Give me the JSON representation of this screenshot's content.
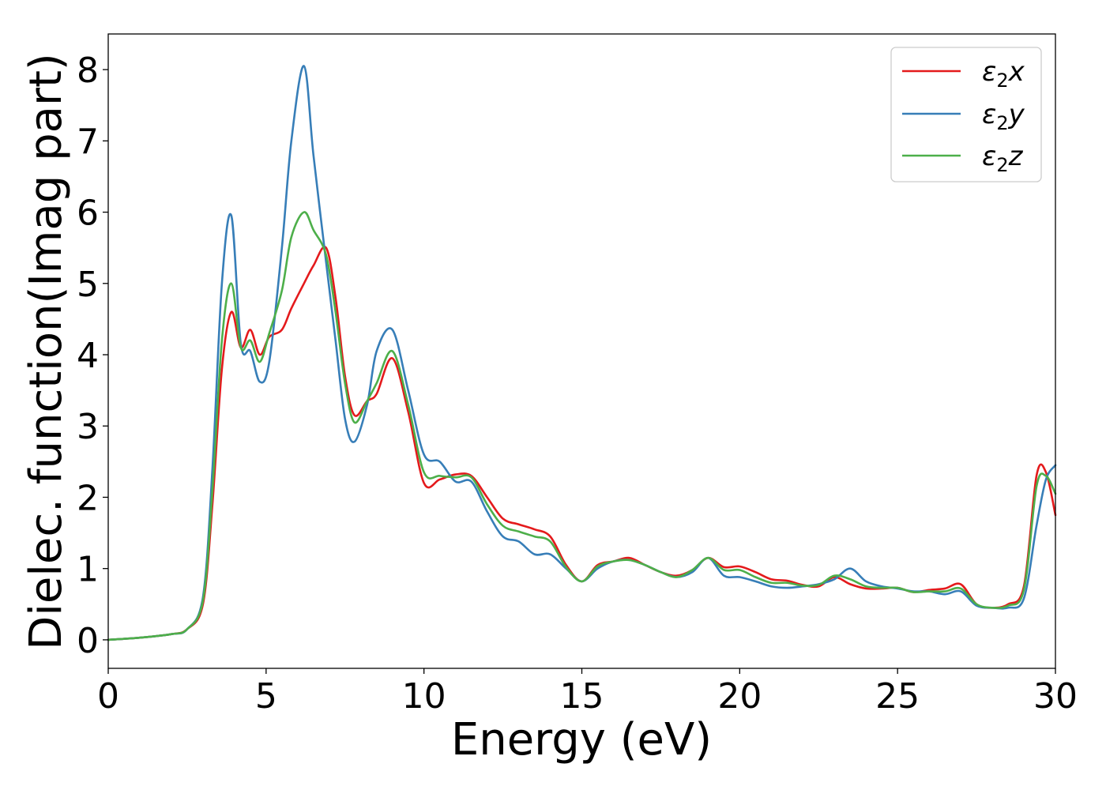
{
  "chart_data": {
    "type": "line",
    "xlabel": "Energy (eV)",
    "ylabel": "Dielec. function(Imag part)",
    "xlim": [
      0,
      30
    ],
    "ylim": [
      -0.4,
      8.5
    ],
    "xticks": [
      0,
      5,
      10,
      15,
      20,
      25,
      30
    ],
    "yticks": [
      0,
      1,
      2,
      3,
      4,
      5,
      6,
      7,
      8
    ],
    "grid": false,
    "legend": "top-right",
    "x": [
      0,
      1,
      2,
      2.5,
      3,
      3.3,
      3.6,
      3.9,
      4.2,
      4.5,
      4.8,
      5.1,
      5.5,
      5.8,
      6.2,
      6.5,
      6.9,
      7.2,
      7.5,
      7.8,
      8.2,
      8.5,
      9.0,
      9.5,
      10.0,
      10.5,
      11.0,
      11.5,
      12.0,
      12.5,
      13.0,
      13.5,
      14.0,
      14.5,
      15.0,
      15.5,
      16.0,
      16.5,
      17.0,
      17.5,
      18.0,
      18.5,
      19.0,
      19.5,
      20.0,
      20.5,
      21.0,
      21.5,
      22.0,
      22.5,
      23.0,
      23.5,
      24.0,
      24.5,
      25.0,
      25.5,
      26.0,
      26.5,
      27.0,
      27.5,
      28.0,
      28.5,
      29.0,
      29.4,
      29.7,
      30.0
    ],
    "series": [
      {
        "name": "ε2x",
        "color": "#e41a1c",
        "values": [
          0.0,
          0.03,
          0.08,
          0.15,
          0.5,
          1.9,
          3.8,
          4.6,
          4.1,
          4.35,
          4.0,
          4.25,
          4.35,
          4.65,
          5.0,
          5.25,
          5.5,
          4.8,
          3.7,
          3.15,
          3.35,
          3.45,
          3.95,
          3.2,
          2.2,
          2.25,
          2.32,
          2.3,
          2.0,
          1.7,
          1.62,
          1.55,
          1.45,
          1.05,
          0.82,
          1.05,
          1.1,
          1.15,
          1.05,
          0.95,
          0.9,
          0.98,
          1.15,
          1.02,
          1.03,
          0.95,
          0.85,
          0.83,
          0.77,
          0.75,
          0.88,
          0.78,
          0.72,
          0.72,
          0.73,
          0.67,
          0.7,
          0.72,
          0.78,
          0.5,
          0.45,
          0.5,
          0.75,
          2.3,
          2.35,
          1.75
        ]
      },
      {
        "name": "ε2y",
        "color": "#377eb8",
        "values": [
          0.0,
          0.03,
          0.08,
          0.15,
          0.6,
          2.4,
          5.0,
          5.95,
          4.15,
          4.05,
          3.62,
          3.9,
          5.5,
          7.0,
          8.05,
          6.8,
          5.3,
          4.2,
          3.1,
          2.78,
          3.3,
          4.05,
          4.35,
          3.5,
          2.6,
          2.5,
          2.22,
          2.22,
          1.8,
          1.45,
          1.38,
          1.2,
          1.2,
          1.0,
          0.82,
          1.0,
          1.1,
          1.12,
          1.05,
          0.95,
          0.88,
          0.95,
          1.15,
          0.9,
          0.88,
          0.82,
          0.75,
          0.73,
          0.75,
          0.78,
          0.85,
          1.0,
          0.82,
          0.75,
          0.72,
          0.68,
          0.68,
          0.64,
          0.68,
          0.48,
          0.45,
          0.45,
          0.58,
          1.6,
          2.25,
          2.45
        ]
      },
      {
        "name": "ε2z",
        "color": "#4daf4a",
        "values": [
          0.0,
          0.03,
          0.08,
          0.15,
          0.55,
          2.1,
          4.2,
          5.0,
          4.1,
          4.2,
          3.9,
          4.3,
          4.9,
          5.65,
          6.0,
          5.75,
          5.4,
          4.6,
          3.6,
          3.05,
          3.35,
          3.6,
          4.05,
          3.3,
          2.35,
          2.3,
          2.28,
          2.28,
          1.9,
          1.6,
          1.52,
          1.45,
          1.38,
          1.02,
          0.82,
          1.03,
          1.1,
          1.12,
          1.05,
          0.95,
          0.88,
          0.98,
          1.15,
          0.98,
          0.98,
          0.88,
          0.8,
          0.8,
          0.76,
          0.77,
          0.9,
          0.85,
          0.75,
          0.73,
          0.73,
          0.67,
          0.68,
          0.68,
          0.72,
          0.5,
          0.45,
          0.48,
          0.7,
          2.15,
          2.3,
          2.05
        ]
      }
    ]
  },
  "legend": {
    "items": [
      {
        "base": "ε",
        "sub": "2",
        "suffix": "x"
      },
      {
        "base": "ε",
        "sub": "2",
        "suffix": "y"
      },
      {
        "base": "ε",
        "sub": "2",
        "suffix": "z"
      }
    ]
  }
}
